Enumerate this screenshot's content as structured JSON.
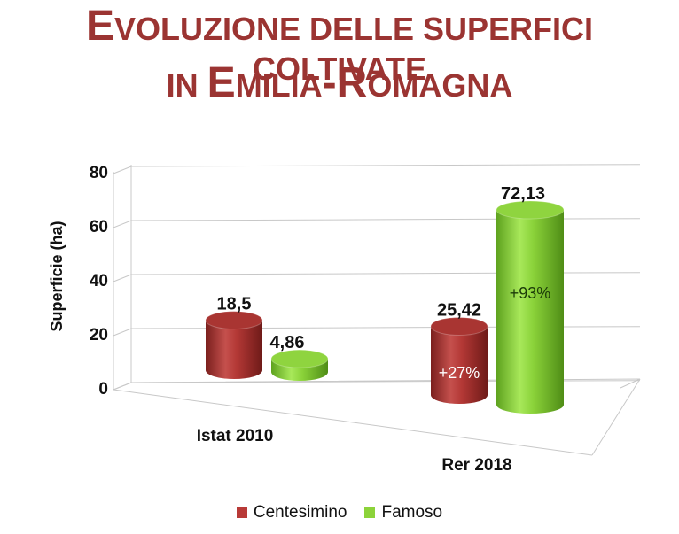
{
  "title": {
    "line1": [
      {
        "text": "E",
        "big": true
      },
      {
        "text": "VOLUZIONE DELLE SUPERFICI COLTIVATE",
        "big": false
      }
    ],
    "line2": [
      {
        "text": "IN ",
        "big": false
      },
      {
        "text": "E",
        "big": true
      },
      {
        "text": "MILIA",
        "big": false
      },
      {
        "text": "-R",
        "big": true
      },
      {
        "text": "OMAGNA",
        "big": false
      }
    ]
  },
  "chart_data": {
    "type": "bar",
    "style": "3d-cylinder",
    "title": "Evoluzione delle superfici coltivate in Emilia-Romagna",
    "categories": [
      "Istat 2010",
      "Rer 2018"
    ],
    "series": [
      {
        "name": "Centesimino",
        "color": "#b83a37",
        "values": [
          18.5,
          25.42
        ],
        "value_labels": [
          "18,5",
          "25,42"
        ],
        "annotations": [
          "",
          "+27%"
        ]
      },
      {
        "name": "Famoso",
        "color": "#8cd33a",
        "values": [
          4.86,
          72.13
        ],
        "value_labels": [
          "4,86",
          "72,13"
        ],
        "annotations": [
          "",
          "+93%"
        ]
      }
    ],
    "ylabel": "Superficie (ha)",
    "xlabel": "",
    "ylim": [
      0,
      80
    ],
    "yticks": [
      0,
      20,
      40,
      60,
      80
    ],
    "grid": true,
    "legend_position": "bottom"
  }
}
